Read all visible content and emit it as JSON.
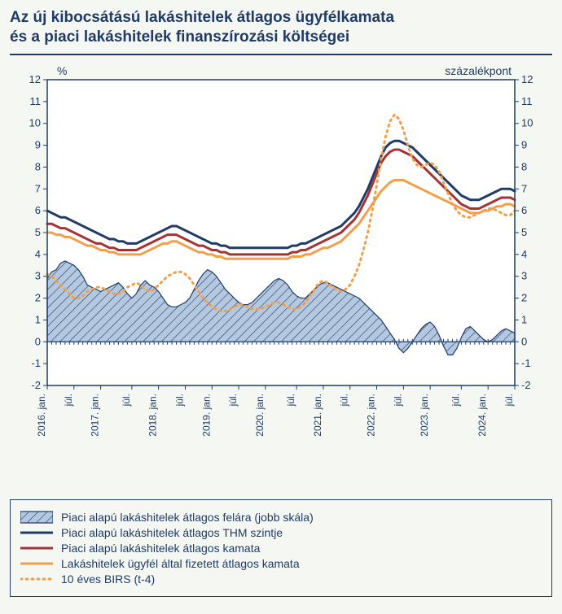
{
  "title_line1": "Az új kibocsátású lakáshitelek átlagos ügyfélkamata",
  "title_line2": "és a piaci lakáshitelek finanszírozási költségei",
  "yaxis_left_label": "%",
  "yaxis_right_label": "százalékpont",
  "chart": {
    "type": "line+area",
    "background_color": "#f5f7f3",
    "plot_bg": "#ffffff",
    "border_color": "#1f3b66",
    "grid_color": "#ffffff",
    "tick_color": "#1f3b66",
    "text_color": "#1f3b66",
    "ylim": [
      -2,
      12
    ],
    "yticks": [
      -2,
      -1,
      0,
      1,
      2,
      3,
      4,
      5,
      6,
      7,
      8,
      9,
      10,
      11,
      12
    ],
    "x_categories": [
      "2016. jan.",
      "júl.",
      "2017. jan.",
      "júl.",
      "2018. jan.",
      "júl.",
      "2019. jan.",
      "júl.",
      "2020. jan.",
      "júl.",
      "2021. jan.",
      "júl.",
      "2022. jan.",
      "júl.",
      "2023. jan.",
      "júl.",
      "2024. jan.",
      "júl."
    ],
    "series": {
      "spread_area": {
        "label": "Piaci alapú lakáshitelek átlagos felára (jobb skála)",
        "type": "area-hatched",
        "color_fill": "#b4c8e0",
        "color_stroke": "#1f3b66",
        "hatch_angle": 45,
        "values": [
          2.9,
          3.2,
          3.3,
          3.6,
          3.7,
          3.6,
          3.5,
          3.3,
          3.0,
          2.6,
          2.5,
          2.4,
          2.3,
          2.4,
          2.5,
          2.6,
          2.7,
          2.5,
          2.2,
          2.0,
          2.2,
          2.6,
          2.8,
          2.6,
          2.5,
          2.3,
          2.0,
          1.7,
          1.6,
          1.6,
          1.7,
          1.8,
          2.0,
          2.4,
          2.8,
          3.1,
          3.3,
          3.2,
          3.0,
          2.7,
          2.4,
          2.2,
          2.0,
          1.8,
          1.7,
          1.7,
          1.8,
          2.0,
          2.2,
          2.4,
          2.6,
          2.8,
          2.9,
          2.8,
          2.6,
          2.3,
          2.1,
          2.0,
          2.0,
          2.2,
          2.4,
          2.6,
          2.7,
          2.7,
          2.6,
          2.5,
          2.4,
          2.3,
          2.2,
          2.1,
          2.0,
          1.8,
          1.6,
          1.4,
          1.2,
          1.0,
          0.7,
          0.4,
          0.1,
          -0.3,
          -0.5,
          -0.3,
          0.0,
          0.3,
          0.6,
          0.8,
          0.9,
          0.7,
          0.3,
          -0.2,
          -0.6,
          -0.6,
          -0.3,
          0.2,
          0.6,
          0.7,
          0.5,
          0.3,
          0.1,
          0.0,
          0.1,
          0.3,
          0.5,
          0.6,
          0.5,
          0.4
        ]
      },
      "thm": {
        "label": "Piaci alapú lakáshitelek átlagos THM szintje",
        "type": "line",
        "color": "#1f3b66",
        "width": 3,
        "values": [
          6.0,
          5.9,
          5.8,
          5.7,
          5.7,
          5.6,
          5.5,
          5.4,
          5.3,
          5.2,
          5.1,
          5.0,
          4.9,
          4.8,
          4.7,
          4.7,
          4.6,
          4.6,
          4.5,
          4.5,
          4.5,
          4.6,
          4.7,
          4.8,
          4.9,
          5.0,
          5.1,
          5.2,
          5.3,
          5.3,
          5.2,
          5.1,
          5.0,
          4.9,
          4.8,
          4.7,
          4.6,
          4.5,
          4.5,
          4.4,
          4.4,
          4.3,
          4.3,
          4.3,
          4.3,
          4.3,
          4.3,
          4.3,
          4.3,
          4.3,
          4.3,
          4.3,
          4.3,
          4.3,
          4.3,
          4.4,
          4.4,
          4.5,
          4.5,
          4.6,
          4.7,
          4.8,
          4.9,
          5.0,
          5.1,
          5.2,
          5.3,
          5.5,
          5.7,
          5.9,
          6.2,
          6.6,
          7.0,
          7.5,
          8.0,
          8.5,
          8.9,
          9.1,
          9.2,
          9.2,
          9.1,
          9.0,
          8.9,
          8.7,
          8.5,
          8.3,
          8.1,
          7.9,
          7.7,
          7.5,
          7.3,
          7.1,
          6.9,
          6.7,
          6.6,
          6.5,
          6.5,
          6.5,
          6.6,
          6.7,
          6.8,
          6.9,
          7.0,
          7.0,
          7.0,
          6.9
        ]
      },
      "rate": {
        "label": "Piaci alapú lakáshitelek átlagos kamata",
        "type": "line",
        "color": "#a33434",
        "width": 3,
        "values": [
          5.4,
          5.4,
          5.3,
          5.2,
          5.2,
          5.1,
          5.0,
          4.9,
          4.8,
          4.7,
          4.6,
          4.5,
          4.5,
          4.4,
          4.3,
          4.3,
          4.2,
          4.2,
          4.2,
          4.2,
          4.2,
          4.3,
          4.4,
          4.5,
          4.6,
          4.7,
          4.8,
          4.9,
          4.9,
          4.9,
          4.8,
          4.7,
          4.6,
          4.5,
          4.4,
          4.4,
          4.3,
          4.2,
          4.2,
          4.1,
          4.1,
          4.0,
          4.0,
          4.0,
          4.0,
          4.0,
          4.0,
          4.0,
          4.0,
          4.0,
          4.0,
          4.0,
          4.0,
          4.0,
          4.0,
          4.1,
          4.1,
          4.2,
          4.2,
          4.3,
          4.4,
          4.5,
          4.6,
          4.7,
          4.8,
          4.9,
          5.0,
          5.2,
          5.4,
          5.6,
          5.9,
          6.3,
          6.7,
          7.2,
          7.7,
          8.2,
          8.5,
          8.7,
          8.8,
          8.8,
          8.7,
          8.6,
          8.5,
          8.3,
          8.1,
          7.9,
          7.7,
          7.5,
          7.3,
          7.1,
          6.9,
          6.7,
          6.5,
          6.3,
          6.2,
          6.1,
          6.1,
          6.1,
          6.2,
          6.3,
          6.4,
          6.5,
          6.6,
          6.6,
          6.6,
          6.5
        ]
      },
      "paid_rate": {
        "label": "Lakáshitelek ügyfél által fizetett átlagos kamata",
        "type": "line",
        "color": "#f0a04b",
        "width": 3,
        "values": [
          5.0,
          5.0,
          4.9,
          4.9,
          4.8,
          4.8,
          4.7,
          4.6,
          4.5,
          4.4,
          4.4,
          4.3,
          4.2,
          4.2,
          4.1,
          4.1,
          4.0,
          4.0,
          4.0,
          4.0,
          4.0,
          4.0,
          4.1,
          4.2,
          4.3,
          4.4,
          4.5,
          4.5,
          4.6,
          4.6,
          4.5,
          4.4,
          4.3,
          4.2,
          4.1,
          4.1,
          4.0,
          4.0,
          3.9,
          3.9,
          3.8,
          3.8,
          3.8,
          3.8,
          3.8,
          3.8,
          3.8,
          3.8,
          3.8,
          3.8,
          3.8,
          3.8,
          3.8,
          3.8,
          3.8,
          3.9,
          3.9,
          3.9,
          4.0,
          4.0,
          4.1,
          4.2,
          4.3,
          4.3,
          4.4,
          4.5,
          4.6,
          4.8,
          5.0,
          5.2,
          5.4,
          5.7,
          6.0,
          6.3,
          6.6,
          6.9,
          7.1,
          7.3,
          7.4,
          7.4,
          7.4,
          7.3,
          7.2,
          7.1,
          7.0,
          6.9,
          6.8,
          6.7,
          6.6,
          6.5,
          6.4,
          6.3,
          6.2,
          6.1,
          6.0,
          5.9,
          5.9,
          5.9,
          6.0,
          6.0,
          6.1,
          6.2,
          6.2,
          6.3,
          6.3,
          6.2
        ]
      },
      "birs": {
        "label": "10 éves BIRS (t-4)",
        "type": "line-dotted",
        "color": "#f0a04b",
        "width": 3,
        "dash": "2,5",
        "values": [
          3.1,
          3.0,
          2.8,
          2.6,
          2.4,
          2.2,
          2.0,
          2.0,
          2.1,
          2.3,
          2.4,
          2.5,
          2.5,
          2.4,
          2.3,
          2.2,
          2.2,
          2.3,
          2.5,
          2.6,
          2.7,
          2.6,
          2.4,
          2.3,
          2.4,
          2.6,
          2.8,
          3.0,
          3.1,
          3.2,
          3.2,
          3.1,
          2.9,
          2.6,
          2.3,
          2.0,
          1.8,
          1.6,
          1.5,
          1.4,
          1.4,
          1.5,
          1.6,
          1.7,
          1.7,
          1.6,
          1.5,
          1.5,
          1.5,
          1.6,
          1.7,
          1.8,
          1.8,
          1.7,
          1.6,
          1.5,
          1.5,
          1.6,
          1.8,
          2.1,
          2.4,
          2.7,
          2.8,
          2.7,
          2.5,
          2.4,
          2.3,
          2.4,
          2.6,
          3.0,
          3.5,
          4.2,
          5.0,
          6.0,
          7.2,
          8.4,
          9.4,
          10.1,
          10.4,
          10.2,
          9.7,
          9.0,
          8.4,
          8.1,
          8.0,
          8.1,
          8.2,
          8.1,
          7.8,
          7.3,
          6.8,
          6.3,
          6.0,
          5.8,
          5.7,
          5.7,
          5.8,
          5.9,
          6.0,
          6.1,
          6.1,
          6.0,
          5.9,
          5.8,
          5.8,
          6.0
        ]
      }
    }
  },
  "legend": {
    "items": [
      {
        "key": "spread_area"
      },
      {
        "key": "thm"
      },
      {
        "key": "rate"
      },
      {
        "key": "paid_rate"
      },
      {
        "key": "birs"
      }
    ]
  }
}
